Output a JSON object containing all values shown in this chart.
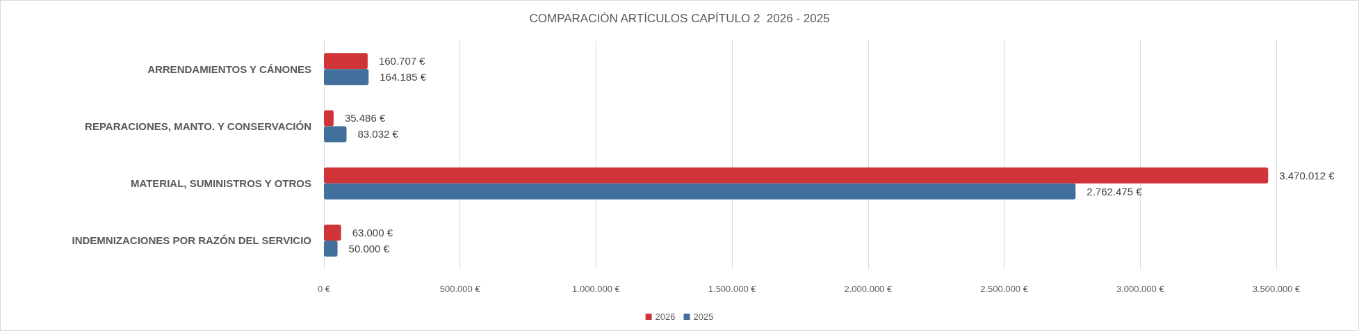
{
  "chart_data": {
    "type": "bar",
    "orientation": "horizontal",
    "title": "COMPARACIÓN ARTÍCULOS CAPÍTULO 2  2026 - 2025",
    "categories": [
      "ARRENDAMIENTOS Y CÁNONES",
      "REPARACIONES, MANTO. Y CONSERVACIÓN",
      "MATERIAL, SUMINISTROS Y OTROS",
      "INDEMNIZACIONES POR RAZÓN DEL SERVICIO"
    ],
    "series": [
      {
        "name": "2026",
        "color": "#d13438",
        "values": [
          160707,
          35486,
          3470012,
          63000
        ],
        "value_labels": [
          "160.707 €",
          "35.486 €",
          "3.470.012 €",
          "63.000 €"
        ]
      },
      {
        "name": "2025",
        "color": "#41709c",
        "values": [
          164185,
          83032,
          2762475,
          50000
        ],
        "value_labels": [
          "164.185 €",
          "83.032 €",
          "2.762.475 €",
          "50.000 €"
        ]
      }
    ],
    "xlim": [
      0,
      3500000
    ],
    "xticks": [
      {
        "value": 0,
        "label": "0 €"
      },
      {
        "value": 500000,
        "label": "500.000 €"
      },
      {
        "value": 1000000,
        "label": "1.000.000 €"
      },
      {
        "value": 1500000,
        "label": "1.500.000 €"
      },
      {
        "value": 2000000,
        "label": "2.000.000 €"
      },
      {
        "value": 2500000,
        "label": "2.500.000 €"
      },
      {
        "value": 3000000,
        "label": "3.000.000 €"
      },
      {
        "value": 3500000,
        "label": "3.500.000 €"
      }
    ],
    "grid": "x",
    "legend": "bottom"
  }
}
